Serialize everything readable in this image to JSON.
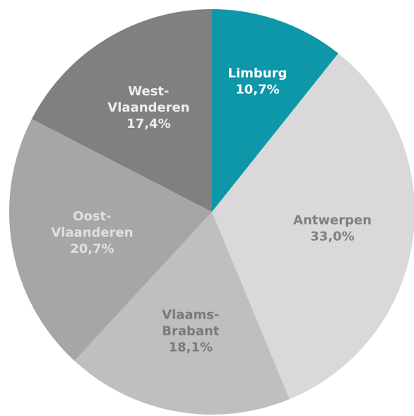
{
  "chart_data": {
    "type": "pie",
    "categories": [
      "Limburg",
      "Antwerpen",
      "Vlaams-Brabant",
      "Oost-Vlaanderen",
      "West-Vlaanderen"
    ],
    "values": [
      10.7,
      33.0,
      18.1,
      20.7,
      17.4
    ],
    "value_labels": [
      "10,7%",
      "33,0%",
      "18,1%",
      "20,7%",
      "17,4%"
    ],
    "colors": [
      "#0e97a8",
      "#d9d9d9",
      "#bfbfbf",
      "#a6a6a6",
      "#808080"
    ],
    "label_colors": [
      "#ffffff",
      "#808080",
      "#7a7a7a",
      "#e0e0e0",
      "#eeeeee"
    ]
  }
}
